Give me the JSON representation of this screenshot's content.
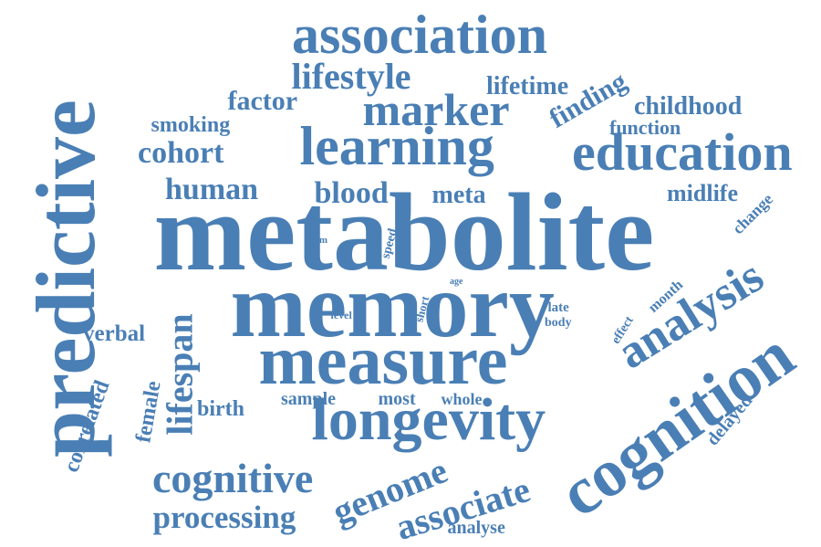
{
  "word_cloud": {
    "color": "#4a7fb5",
    "background": "#ffffff",
    "words": [
      {
        "text": "metabolite"
      },
      {
        "text": "memory"
      },
      {
        "text": "predictive"
      },
      {
        "text": "measure"
      },
      {
        "text": "longevity"
      },
      {
        "text": "cognition"
      },
      {
        "text": "association"
      },
      {
        "text": "learning"
      },
      {
        "text": "education"
      },
      {
        "text": "analysis"
      },
      {
        "text": "marker"
      },
      {
        "text": "cognitive"
      },
      {
        "text": "lifespan"
      },
      {
        "text": "genome"
      },
      {
        "text": "associate"
      },
      {
        "text": "lifestyle"
      },
      {
        "text": "processing"
      },
      {
        "text": "human"
      },
      {
        "text": "cohort"
      },
      {
        "text": "blood"
      },
      {
        "text": "factor"
      },
      {
        "text": "finding"
      },
      {
        "text": "lifetime"
      },
      {
        "text": "childhood"
      },
      {
        "text": "midlife"
      },
      {
        "text": "meta"
      },
      {
        "text": "smoking"
      },
      {
        "text": "function"
      },
      {
        "text": "verbal"
      },
      {
        "text": "correlated"
      },
      {
        "text": "female"
      },
      {
        "text": "birth"
      },
      {
        "text": "sample"
      },
      {
        "text": "most"
      },
      {
        "text": "whole"
      },
      {
        "text": "delayed"
      },
      {
        "text": "analyse"
      },
      {
        "text": "change"
      },
      {
        "text": "month"
      },
      {
        "text": "effect"
      },
      {
        "text": "late"
      },
      {
        "text": "body"
      },
      {
        "text": "speed"
      },
      {
        "text": "short"
      },
      {
        "text": "level"
      },
      {
        "text": "term"
      },
      {
        "text": "age"
      }
    ]
  }
}
